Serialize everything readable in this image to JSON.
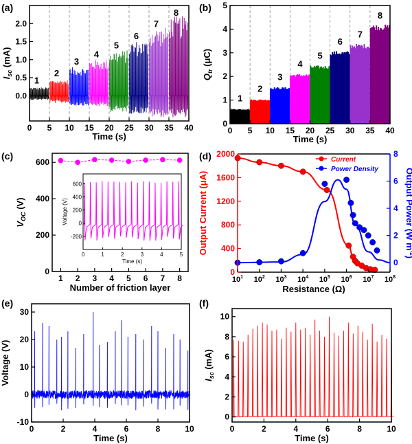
{
  "chart_data": [
    {
      "panel": "(a)",
      "type": "line",
      "xlabel": "Time (s)",
      "ylabel_main": "I",
      "ylabel_sub": "sc",
      "ylabel_unit": " (mA)",
      "xlim": [
        0,
        40
      ],
      "ylim": [
        -0.7,
        2.5
      ],
      "xticks": [
        0,
        5,
        10,
        15,
        20,
        25,
        30,
        35,
        40
      ],
      "yticks": [
        0.0,
        0.5,
        1.0,
        1.5,
        2.0
      ],
      "ytick_labels": [
        "0.0",
        "0.5",
        "1.0",
        "1.5",
        "2.0"
      ],
      "dashed_lines_x": [
        5,
        10,
        15,
        20,
        25,
        30,
        35
      ],
      "segments": [
        {
          "label": "1",
          "color": "#000000",
          "x": [
            0,
            5
          ],
          "peak": 0.22,
          "low": -0.12
        },
        {
          "label": "2",
          "color": "#ff0000",
          "x": [
            5,
            10
          ],
          "peak": 0.42,
          "low": -0.2
        },
        {
          "label": "3",
          "color": "#0000ff",
          "x": [
            10,
            15
          ],
          "peak": 0.75,
          "low": -0.28
        },
        {
          "label": "4",
          "color": "#ff00ff",
          "x": [
            15,
            20
          ],
          "peak": 0.95,
          "low": -0.3
        },
        {
          "label": "5",
          "color": "#008000",
          "x": [
            20,
            25
          ],
          "peak": 1.2,
          "low": -0.45
        },
        {
          "label": "6",
          "color": "#000080",
          "x": [
            25,
            30
          ],
          "peak": 1.45,
          "low": -0.5
        },
        {
          "label": "7",
          "color": "#9932cc",
          "x": [
            30,
            35
          ],
          "peak": 1.8,
          "low": -0.6
        },
        {
          "label": "8",
          "color": "#800080",
          "x": [
            35,
            40
          ],
          "peak": 2.1,
          "low": -0.6
        }
      ]
    },
    {
      "panel": "(b)",
      "type": "line",
      "xlabel": "Time (s)",
      "ylabel_main": "Q",
      "ylabel_sub": "tr",
      "ylabel_unit": " (μC)",
      "xlim": [
        0,
        40
      ],
      "ylim": [
        0,
        5
      ],
      "xticks": [
        0,
        5,
        10,
        15,
        20,
        25,
        30,
        35,
        40
      ],
      "yticks": [
        0,
        1,
        2,
        3,
        4,
        5
      ],
      "ytick_labels": [
        "0",
        "1",
        "2",
        "3",
        "4",
        "5"
      ],
      "dashed_lines_x": [
        5,
        10,
        15,
        20,
        25,
        30,
        35
      ],
      "segments": [
        {
          "label": "1",
          "color": "#000000",
          "x": [
            0,
            5
          ],
          "top": 0.6
        },
        {
          "label": "2",
          "color": "#ff0000",
          "x": [
            5,
            10
          ],
          "top": 1.0
        },
        {
          "label": "3",
          "color": "#0000ff",
          "x": [
            10,
            15
          ],
          "top": 1.5
        },
        {
          "label": "4",
          "color": "#ff00ff",
          "x": [
            15,
            20
          ],
          "top": 2.05
        },
        {
          "label": "5",
          "color": "#008000",
          "x": [
            20,
            25
          ],
          "top": 2.4
        },
        {
          "label": "6",
          "color": "#000080",
          "x": [
            25,
            30
          ],
          "top": 3.0
        },
        {
          "label": "7",
          "color": "#9932cc",
          "x": [
            30,
            35
          ],
          "top": 3.3
        },
        {
          "label": "8",
          "color": "#800080",
          "x": [
            35,
            40
          ],
          "top": 4.1
        }
      ]
    },
    {
      "panel": "(c)",
      "type": "scatter",
      "xlabel": "Number of friction layer",
      "ylabel_main": "V",
      "ylabel_sub": "OC",
      "ylabel_unit": " (V)",
      "xlim": [
        0.5,
        8.5
      ],
      "ylim": [
        0,
        650
      ],
      "xticks": [
        1,
        2,
        3,
        4,
        5,
        6,
        7,
        8
      ],
      "yticks": [
        0,
        200,
        400,
        600
      ],
      "ytick_labels": [
        "0",
        "200",
        "400",
        "600"
      ],
      "x": [
        1,
        2,
        3,
        4,
        5,
        6,
        7,
        8
      ],
      "y": [
        610,
        600,
        615,
        612,
        605,
        612,
        615,
        612
      ],
      "color": "#ff00ff",
      "inset": {
        "xlabel": "Time (s)",
        "ylabel": "Voltage (V)",
        "xlim": [
          0,
          5
        ],
        "ylim": [
          -400,
          750
        ],
        "xticks": [
          0,
          1,
          2,
          3,
          4,
          5
        ],
        "yticks": [
          -200,
          0,
          200,
          400,
          600
        ],
        "ytick_labels": [
          "-200",
          "0",
          "200",
          "400",
          "600"
        ],
        "peak": 630,
        "low": -280,
        "period": 0.3,
        "color": "#ff00ff"
      }
    },
    {
      "panel": "(d)",
      "type": "line",
      "xlabel": "Resistance (Ω)",
      "ylabel_left": "Output Current (μA)",
      "ylabel_right_main": "Output Power (W m",
      "ylabel_right_sup": "-2",
      "ylabel_right_end": ")",
      "xscale": "log",
      "xlim_exp": [
        1,
        8
      ],
      "xtick_exps": [
        1,
        2,
        3,
        4,
        5,
        6,
        7,
        8
      ],
      "ylim_left": [
        0,
        2000
      ],
      "yticks_left": [
        0,
        400,
        800,
        1200,
        1600,
        2000
      ],
      "ytick_labels_left": [
        "0",
        "400",
        "800",
        "1200",
        "1600",
        "2000"
      ],
      "ylim_right": [
        -0.7,
        8
      ],
      "yticks_right": [
        0,
        2,
        4,
        6,
        8
      ],
      "ytick_labels_right": [
        "0",
        "2",
        "4",
        "6",
        "8"
      ],
      "legend_position": "top-right",
      "series": [
        {
          "name": "Current",
          "axis": "left",
          "color": "#ff0000",
          "log_x": [
            1,
            2,
            3,
            4,
            5.1,
            6.1,
            6.3,
            6.4,
            6.5,
            6.7,
            6.9,
            7.1,
            7.3
          ],
          "y": [
            1930,
            1860,
            1800,
            1700,
            1390,
            450,
            260,
            190,
            150,
            110,
            70,
            50,
            40
          ]
        },
        {
          "name": "Power Density",
          "axis": "right",
          "color": "#0000ff",
          "log_x": [
            1,
            2,
            3,
            4,
            5,
            6,
            6.2,
            6.3,
            6.4,
            6.6,
            6.8,
            7,
            7.2,
            7.4
          ],
          "y": [
            0.0,
            0.03,
            0.1,
            0.7,
            5.8,
            6.1,
            4.4,
            3.5,
            2.9,
            2.6,
            2.4,
            2.0,
            1.5,
            0.9
          ]
        }
      ]
    },
    {
      "panel": "(e)",
      "type": "line",
      "xlabel": "Time (s)",
      "ylabel": "Voltage (V)",
      "xlim": [
        0,
        10
      ],
      "ylim": [
        -10,
        33
      ],
      "xticks": [
        0,
        2,
        4,
        6,
        8,
        10
      ],
      "yticks": [
        -10,
        0,
        10,
        20,
        30
      ],
      "ytick_labels": [
        "-10",
        "0",
        "10",
        "20",
        "30"
      ],
      "color": "#0000ff",
      "peak_times": [
        0.2,
        0.7,
        1.1,
        1.6,
        1.9,
        2.3,
        2.8,
        3.3,
        3.9,
        4.3,
        4.8,
        5.3,
        5.7,
        6.1,
        6.6,
        7.1,
        7.6,
        8.0,
        8.5,
        9.0,
        9.4,
        9.9
      ],
      "peak_values": [
        23,
        26,
        25,
        20,
        21,
        23,
        17,
        22,
        30,
        18,
        19,
        23,
        27,
        21,
        22,
        20,
        25,
        23,
        17,
        22,
        20,
        16
      ],
      "noise_amplitude": 1.5
    },
    {
      "panel": "(f)",
      "type": "line",
      "xlabel": "Time (s)",
      "ylabel_main": "I",
      "ylabel_sub": "sc",
      "ylabel_unit": " (mA)",
      "xlim": [
        0,
        10
      ],
      "ylim": [
        -0.5,
        10.8
      ],
      "xticks": [
        0,
        2,
        4,
        6,
        8,
        10
      ],
      "yticks": [
        0,
        2,
        4,
        6,
        8,
        10
      ],
      "ytick_labels": [
        "0",
        "2",
        "4",
        "6",
        "8",
        "10"
      ],
      "color": "#ff0000",
      "peak_times": [
        0.1,
        0.4,
        0.7,
        1.0,
        1.3,
        1.6,
        1.9,
        2.2,
        2.5,
        2.8,
        3.1,
        3.4,
        3.7,
        4.0,
        4.3,
        4.6,
        4.9,
        5.2,
        5.5,
        5.8,
        6.1,
        6.4,
        6.7,
        7.0,
        7.3,
        7.6,
        7.9,
        8.2,
        8.5,
        8.8,
        9.1,
        9.4,
        9.7,
        10.0
      ],
      "peak_values": [
        7.7,
        7.6,
        7.5,
        8.2,
        8.8,
        9.1,
        9.4,
        9.2,
        8.6,
        8.7,
        7.8,
        8.9,
        8.5,
        9.4,
        8.7,
        8.9,
        8.2,
        9.7,
        8.6,
        8.0,
        10.0,
        8.4,
        8.1,
        8.6,
        9.4,
        8.3,
        9.1,
        8.5,
        7.7,
        9.3,
        7.5,
        8.2,
        7.8,
        8.4
      ]
    }
  ],
  "panel_labels": [
    "(a)",
    "(b)",
    "(c)",
    "(d)",
    "(e)",
    "(f)"
  ]
}
